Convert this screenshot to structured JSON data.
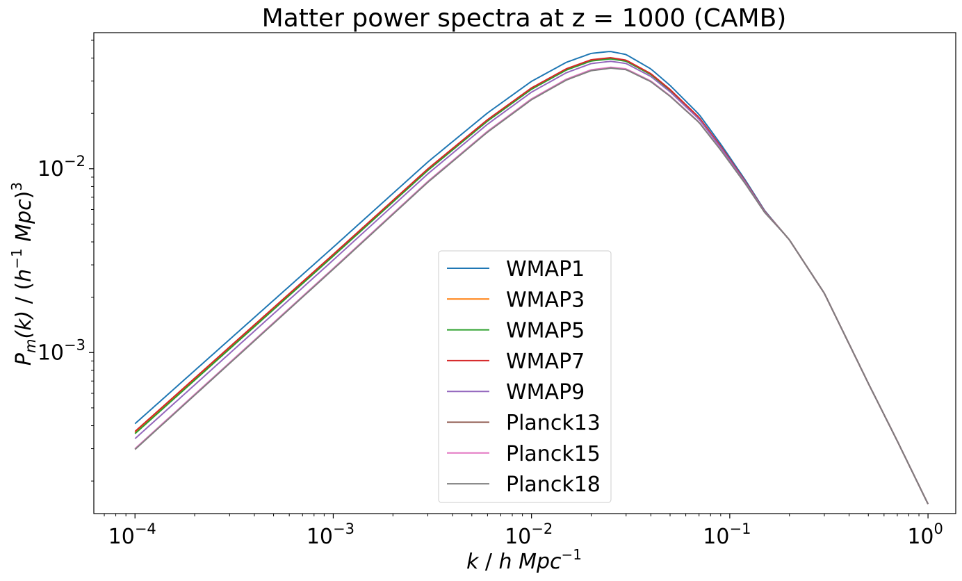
{
  "chart_data": {
    "type": "line",
    "title": "Matter power spectra at z = 1000 (CAMB)",
    "xlabel": {
      "k": "k",
      "sep": " / ",
      "h": "h",
      "mpc": "Mpc",
      "exp": "−1"
    },
    "ylabel": {
      "P": "P",
      "sub": "m",
      "arg": "(k)",
      "sep": " / (",
      "h": "h",
      "exp1": "−1",
      "mpc": " Mpc",
      "close": ")",
      "exp3": "3"
    },
    "x_scale": "log",
    "y_scale": "log",
    "xlim": [
      6.2e-05,
      1.38
    ],
    "ylim": [
      0.000133,
      0.055
    ],
    "x_ticks": [
      {
        "base": "10",
        "exp": "−4",
        "value": 0.0001
      },
      {
        "base": "10",
        "exp": "−3",
        "value": 0.001
      },
      {
        "base": "10",
        "exp": "−2",
        "value": 0.01
      },
      {
        "base": "10",
        "exp": "−1",
        "value": 0.1
      },
      {
        "base": "10",
        "exp": "0",
        "value": 1
      }
    ],
    "y_ticks": [
      {
        "base": "10",
        "exp": "−3",
        "value": 0.001
      },
      {
        "base": "10",
        "exp": "−2",
        "value": 0.01
      }
    ],
    "legend_position": "lower center",
    "shape": {
      "k": [
        0.0001,
        0.001,
        0.003,
        0.006,
        0.01,
        0.015,
        0.02,
        0.025,
        0.03,
        0.04,
        0.05,
        0.07,
        0.09,
        0.12,
        0.15,
        0.2,
        0.3,
        0.5,
        0.7,
        1.0
      ],
      "P": [
        0.00041,
        0.0037,
        0.0107,
        0.0197,
        0.0292,
        0.037,
        0.0413,
        0.0423,
        0.0408,
        0.0342,
        0.0279,
        0.0195,
        0.0135,
        0.0086,
        0.0059,
        0.0041,
        0.0021,
        0.00068,
        0.00033,
        0.00015
      ]
    },
    "series": [
      {
        "name": "WMAP1",
        "color": "#1f77b4",
        "k": [
          0.0001,
          0.023,
          1.0
        ],
        "P": [
          0.00041,
          0.0433,
          0.00015
        ]
      },
      {
        "name": "WMAP3",
        "color": "#ff7f0e",
        "k": [
          0.0001,
          0.024,
          1.0
        ],
        "P": [
          0.000365,
          0.0398,
          0.00015
        ]
      },
      {
        "name": "WMAP5",
        "color": "#2ca02c",
        "k": [
          0.0001,
          0.024,
          1.0
        ],
        "P": [
          0.000362,
          0.0394,
          0.00015
        ]
      },
      {
        "name": "WMAP7",
        "color": "#d62728",
        "k": [
          0.0001,
          0.024,
          1.0
        ],
        "P": [
          0.000372,
          0.04,
          0.00015
        ]
      },
      {
        "name": "WMAP9",
        "color": "#9467bd",
        "k": [
          0.0001,
          0.025,
          1.0
        ],
        "P": [
          0.00034,
          0.0382,
          0.00015
        ]
      },
      {
        "name": "Planck13",
        "color": "#8c564b",
        "k": [
          0.0001,
          0.025,
          1.0
        ],
        "P": [
          0.000298,
          0.0352,
          0.00015
        ]
      },
      {
        "name": "Planck15",
        "color": "#e377c2",
        "k": [
          0.0001,
          0.025,
          1.0
        ],
        "P": [
          0.0003,
          0.0354,
          0.00015
        ]
      },
      {
        "name": "Planck18",
        "color": "#7f7f7f",
        "k": [
          0.0001,
          0.025,
          1.0
        ],
        "P": [
          0.000297,
          0.035,
          0.00015
        ]
      }
    ]
  }
}
